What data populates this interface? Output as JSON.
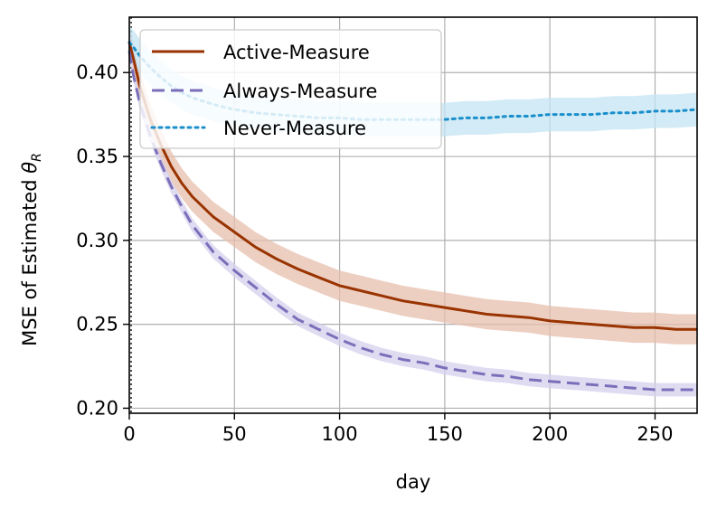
{
  "chart_data": {
    "type": "line",
    "title": "",
    "xlabel": "day",
    "ylabel_prefix": "MSE of Estimated ",
    "ylabel_symbol": "θ",
    "ylabel_subscript": "R",
    "xlim": [
      0,
      270
    ],
    "ylim": [
      0.197,
      0.433
    ],
    "xticks": [
      0,
      50,
      100,
      150,
      200,
      250
    ],
    "yticks": [
      0.2,
      0.25,
      0.3,
      0.35,
      0.4
    ],
    "xtick_labels": [
      "0",
      "50",
      "100",
      "150",
      "200",
      "250"
    ],
    "ytick_labels": [
      "0.20",
      "0.25",
      "0.30",
      "0.35",
      "0.40"
    ],
    "grid": true,
    "legend_position": "upper-left",
    "series": [
      {
        "name": "Active-Measure",
        "color": "#993300",
        "band_color": "#e7bfae",
        "line_style": "solid",
        "x": [
          0,
          2,
          5,
          10,
          15,
          20,
          25,
          30,
          40,
          50,
          60,
          70,
          80,
          90,
          100,
          110,
          120,
          130,
          140,
          150,
          160,
          170,
          180,
          190,
          200,
          210,
          220,
          230,
          240,
          250,
          260,
          270
        ],
        "y": [
          0.418,
          0.408,
          0.392,
          0.372,
          0.357,
          0.344,
          0.334,
          0.326,
          0.314,
          0.305,
          0.296,
          0.289,
          0.283,
          0.278,
          0.273,
          0.27,
          0.267,
          0.264,
          0.262,
          0.26,
          0.258,
          0.256,
          0.255,
          0.254,
          0.252,
          0.251,
          0.25,
          0.249,
          0.248,
          0.248,
          0.247,
          0.247
        ],
        "band": 0.009
      },
      {
        "name": "Always-Measure",
        "color": "#7b6fba",
        "band_color": "#d4d0ee",
        "line_style": "dashed",
        "x": [
          0,
          2,
          5,
          10,
          15,
          20,
          25,
          30,
          40,
          50,
          60,
          70,
          80,
          90,
          100,
          110,
          120,
          130,
          140,
          150,
          160,
          170,
          180,
          190,
          200,
          210,
          220,
          230,
          240,
          250,
          260,
          270
        ],
        "y": [
          0.413,
          0.398,
          0.382,
          0.362,
          0.346,
          0.332,
          0.32,
          0.309,
          0.293,
          0.282,
          0.272,
          0.262,
          0.253,
          0.247,
          0.241,
          0.236,
          0.232,
          0.229,
          0.227,
          0.224,
          0.222,
          0.22,
          0.219,
          0.217,
          0.216,
          0.215,
          0.214,
          0.213,
          0.212,
          0.211,
          0.211,
          0.211
        ],
        "band": 0.004
      },
      {
        "name": "Never-Measure",
        "color": "#1a8fcc",
        "band_color": "#c3e4f3",
        "line_style": "dotted",
        "x": [
          0,
          2,
          5,
          10,
          15,
          20,
          25,
          30,
          40,
          50,
          60,
          70,
          80,
          90,
          100,
          110,
          120,
          130,
          140,
          150,
          160,
          170,
          180,
          190,
          200,
          210,
          220,
          230,
          240,
          250,
          260,
          270
        ],
        "y": [
          0.418,
          0.415,
          0.41,
          0.403,
          0.397,
          0.392,
          0.388,
          0.385,
          0.381,
          0.378,
          0.376,
          0.375,
          0.374,
          0.373,
          0.373,
          0.372,
          0.372,
          0.372,
          0.372,
          0.372,
          0.373,
          0.373,
          0.374,
          0.374,
          0.375,
          0.375,
          0.375,
          0.376,
          0.376,
          0.377,
          0.377,
          0.378
        ],
        "band": 0.01
      }
    ]
  }
}
